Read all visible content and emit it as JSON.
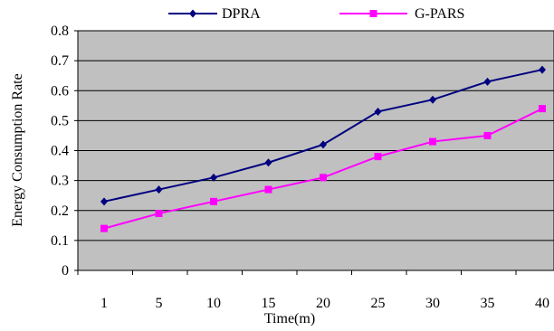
{
  "chart_data": {
    "type": "line",
    "title": "",
    "xlabel": "Time(m)",
    "ylabel": "Energy Consumption Rate",
    "categories": [
      "1",
      "5",
      "10",
      "15",
      "20",
      "25",
      "30",
      "35",
      "40"
    ],
    "ylim": [
      0,
      0.8
    ],
    "yticks": [
      "0",
      "0.1",
      "0.2",
      "0.3",
      "0.4",
      "0.5",
      "0.6",
      "0.7",
      "0.8"
    ],
    "grid": true,
    "legend_position": "top",
    "plot_background": "#c0c0c0",
    "series": [
      {
        "name": "DPRA",
        "color": "#000080",
        "marker": "diamond",
        "values": [
          0.23,
          0.27,
          0.31,
          0.36,
          0.42,
          0.53,
          0.57,
          0.63,
          0.67
        ]
      },
      {
        "name": "G-PARS",
        "color": "#ff00ff",
        "marker": "square",
        "values": [
          0.14,
          0.19,
          0.23,
          0.27,
          0.31,
          0.38,
          0.43,
          0.45,
          0.54
        ]
      }
    ]
  }
}
